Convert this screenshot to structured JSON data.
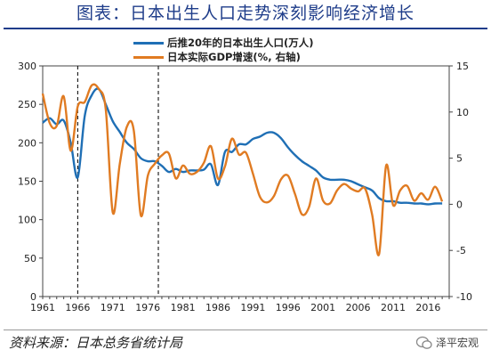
{
  "title": "图表：日本出生人口走势深刻影响经济增长",
  "source": "资料来源：日本总务省统计局",
  "watermark": "泽平宏观",
  "colors": {
    "births": "#1f6fb5",
    "gdp": "#e07b22",
    "title": "#1f3d8a"
  },
  "chart_data": {
    "type": "line",
    "xlim": [
      1961,
      2019
    ],
    "x_ticks": [
      "1961",
      "1966",
      "1971",
      "1976",
      "1981",
      "1986",
      "1991",
      "1996",
      "2001",
      "2006",
      "2011",
      "2016"
    ],
    "y_left": {
      "lim": [
        0,
        300
      ],
      "ticks": [
        "0",
        "50",
        "100",
        "150",
        "200",
        "250",
        "300"
      ]
    },
    "y_right": {
      "lim": [
        -10,
        15
      ],
      "ticks": [
        "-10",
        "-5",
        "0",
        "5",
        "10",
        "15"
      ]
    },
    "vlines": [
      1966,
      1977.5
    ],
    "series": [
      {
        "name": "后推20年的日本出生人口(万人)",
        "axis": "left",
        "x": [
          1961,
          1962,
          1963,
          1964,
          1965,
          1966,
          1967,
          1968,
          1969,
          1970,
          1971,
          1972,
          1973,
          1974,
          1975,
          1976,
          1977,
          1978,
          1979,
          1980,
          1981,
          1982,
          1983,
          1984,
          1985,
          1986,
          1987,
          1988,
          1989,
          1990,
          1991,
          1992,
          1993,
          1994,
          1995,
          1996,
          1997,
          1998,
          1999,
          2000,
          2001,
          2002,
          2003,
          2004,
          2005,
          2006,
          2007,
          2008,
          2009,
          2010,
          2011,
          2012,
          2013,
          2014,
          2015,
          2016,
          2017,
          2018
        ],
        "values": [
          226,
          232,
          224,
          229,
          200,
          155,
          235,
          262,
          270,
          250,
          228,
          214,
          200,
          192,
          180,
          176,
          176,
          170,
          162,
          166,
          162,
          164,
          164,
          165,
          172,
          145,
          188,
          188,
          198,
          198,
          205,
          208,
          213,
          213,
          206,
          194,
          184,
          176,
          170,
          164,
          155,
          152,
          152,
          152,
          150,
          146,
          142,
          138,
          128,
          124,
          124,
          122,
          122,
          121,
          121,
          120,
          121,
          121
        ]
      },
      {
        "name": "日本实际GDP增速(%, 右轴)",
        "axis": "right",
        "x": [
          1961,
          1962,
          1963,
          1964,
          1965,
          1966,
          1967,
          1968,
          1969,
          1970,
          1971,
          1972,
          1973,
          1974,
          1975,
          1976,
          1977,
          1978,
          1979,
          1980,
          1981,
          1982,
          1983,
          1984,
          1985,
          1986,
          1987,
          1988,
          1989,
          1990,
          1991,
          1992,
          1993,
          1994,
          1995,
          1996,
          1997,
          1998,
          1999,
          2000,
          2001,
          2002,
          2003,
          2004,
          2005,
          2006,
          2007,
          2008,
          2009,
          2010,
          2011,
          2012,
          2013,
          2014,
          2015,
          2016,
          2017,
          2018
        ],
        "values": [
          12,
          8.8,
          8.5,
          11.7,
          5.8,
          10.6,
          11.1,
          12.9,
          12.5,
          10.3,
          -0.9,
          4.4,
          8.4,
          8.0,
          -1.2,
          3.1,
          4.4,
          5.3,
          5.5,
          2.8,
          4.2,
          3.3,
          3.5,
          4.5,
          6.3,
          2.8,
          4.1,
          7.1,
          5.4,
          5.6,
          3.3,
          0.8,
          0.2,
          0.9,
          2.7,
          3.1,
          1.1,
          -1.1,
          -0.3,
          2.8,
          0.4,
          0.1,
          1.5,
          2.2,
          1.7,
          1.4,
          1.7,
          -1.1,
          -5.4,
          4.2,
          -0.1,
          1.5,
          2.0,
          0.4,
          1.2,
          0.5,
          1.9,
          0.3
        ]
      }
    ]
  }
}
